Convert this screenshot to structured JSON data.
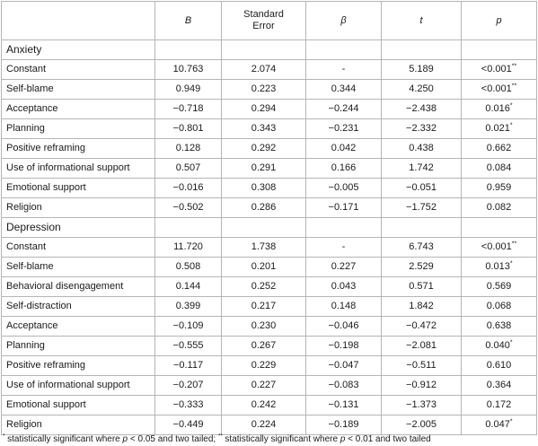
{
  "headers": [
    "",
    "B",
    "Standard\nError",
    "β",
    "t",
    "p"
  ],
  "sections": [
    {
      "title": "Anxiety",
      "rows": [
        {
          "label": "Constant",
          "B": "10.763",
          "se": "2.074",
          "beta": "-",
          "t": "5.189",
          "p": "<0.001",
          "sig": "**"
        },
        {
          "label": "Self-blame",
          "B": "0.949",
          "se": "0.223",
          "beta": "0.344",
          "t": "4.250",
          "p": "<0.001",
          "sig": "**"
        },
        {
          "label": "Acceptance",
          "B": "−0.718",
          "se": "0.294",
          "beta": "−0.244",
          "t": "−2.438",
          "p": "0.016",
          "sig": "*"
        },
        {
          "label": "Planning",
          "B": "−0.801",
          "se": "0.343",
          "beta": "−0.231",
          "t": "−2.332",
          "p": "0.021",
          "sig": "*"
        },
        {
          "label": "Positive reframing",
          "B": "0.128",
          "se": "0.292",
          "beta": "0.042",
          "t": "0.438",
          "p": "0.662",
          "sig": ""
        },
        {
          "label": "Use of informational support",
          "B": "0.507",
          "se": "0.291",
          "beta": "0.166",
          "t": "1.742",
          "p": "0.084",
          "sig": ""
        },
        {
          "label": "Emotional support",
          "B": "−0.016",
          "se": "0.308",
          "beta": "−0.005",
          "t": "−0.051",
          "p": "0.959",
          "sig": ""
        },
        {
          "label": "Religion",
          "B": "−0.502",
          "se": "0.286",
          "beta": "−0.171",
          "t": "−1.752",
          "p": "0.082",
          "sig": ""
        }
      ]
    },
    {
      "title": "Depression",
      "rows": [
        {
          "label": "Constant",
          "B": "11.720",
          "se": "1.738",
          "beta": "-",
          "t": "6.743",
          "p": "<0.001",
          "sig": "**"
        },
        {
          "label": "Self-blame",
          "B": "0.508",
          "se": "0.201",
          "beta": "0.227",
          "t": "2.529",
          "p": "0.013",
          "sig": "*"
        },
        {
          "label": "Behavioral disengagement",
          "B": "0.144",
          "se": "0.252",
          "beta": "0.043",
          "t": "0.571",
          "p": "0.569",
          "sig": ""
        },
        {
          "label": "Self-distraction",
          "B": "0.399",
          "se": "0.217",
          "beta": "0.148",
          "t": "1.842",
          "p": "0.068",
          "sig": ""
        },
        {
          "label": "Acceptance",
          "B": "−0.109",
          "se": "0.230",
          "beta": "−0.046",
          "t": "−0.472",
          "p": "0.638",
          "sig": ""
        },
        {
          "label": "Planning",
          "B": "−0.555",
          "se": "0.267",
          "beta": "−0.198",
          "t": "−2.081",
          "p": "0.040",
          "sig": "*"
        },
        {
          "label": "Positive reframing",
          "B": "−0.117",
          "se": "0.229",
          "beta": "−0.047",
          "t": "−0.511",
          "p": "0.610",
          "sig": ""
        },
        {
          "label": "Use of informational support",
          "B": "−0.207",
          "se": "0.227",
          "beta": "−0.083",
          "t": "−0.912",
          "p": "0.364",
          "sig": ""
        },
        {
          "label": "Emotional support",
          "B": "−0.333",
          "se": "0.242",
          "beta": "−0.131",
          "t": "−1.373",
          "p": "0.172",
          "sig": ""
        },
        {
          "label": "Religion",
          "B": "−0.449",
          "se": "0.224",
          "beta": "−0.189",
          "t": "−2.005",
          "p": "0.047",
          "sig": "*"
        }
      ]
    }
  ],
  "footnote": {
    "mark1": "*",
    "part1": " statistically significant where ",
    "pvar1": "p",
    "part2": " < 0.05 and two tailed; ",
    "mark2": "**",
    "part3": " statistically significant where ",
    "pvar2": "p",
    "part4": " < 0.01 and two tailed"
  }
}
